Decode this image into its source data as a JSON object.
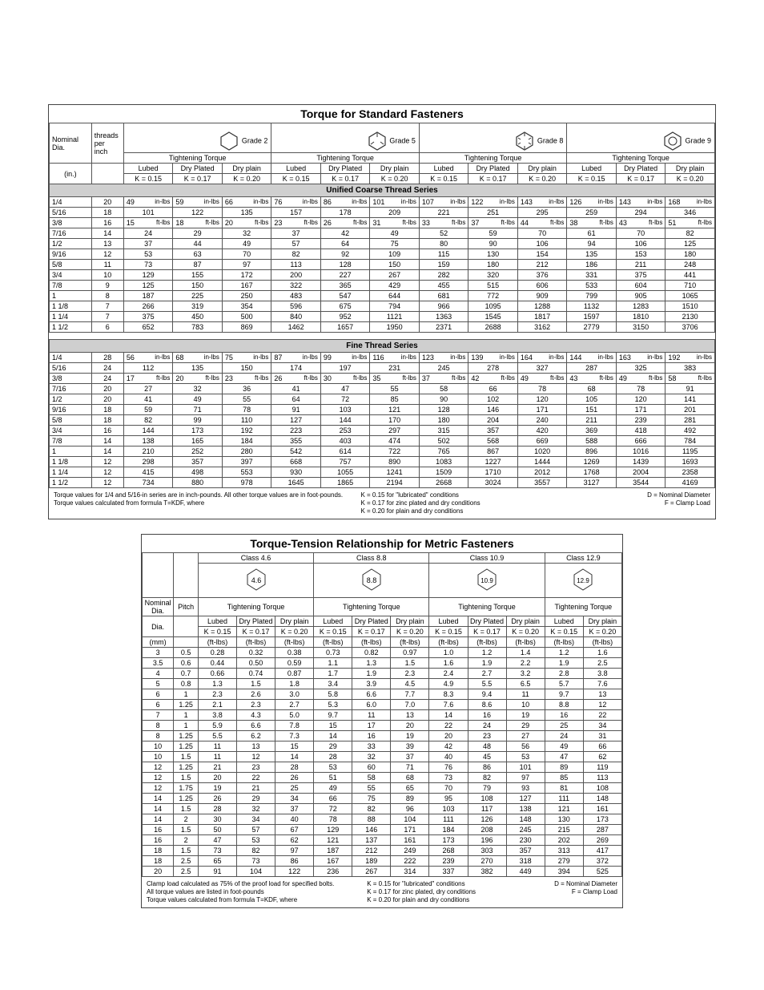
{
  "t1": {
    "title": "Torque for Standard Fasteners",
    "row1_labels": {
      "dia": "Nominal\nDia.",
      "tpi": "threads\nper\ninch",
      "dia_unit": "(in.)"
    },
    "grades": [
      "Grade 2",
      "Grade 5",
      "Grade 8",
      "Grade 9"
    ],
    "tt_label": "Tightening Torque",
    "conditions": [
      "Lubed",
      "Dry Plated",
      "Dry plain"
    ],
    "k_values": [
      "K = 0.15",
      "K = 0.17",
      "K = 0.20",
      "K = 0.15",
      "K = 0.17",
      "K = 0.20",
      "K = 0.15",
      "K = 0.17",
      "K = 0.20",
      "K = 0.15",
      "K = 0.17",
      "K = 0.20"
    ],
    "coarse_title": "Unified Coarse Thread Series",
    "fine_title": "Fine Thread Series",
    "coarse": [
      {
        "d": "1/4",
        "t": "20",
        "u": "in-lbs",
        "v": [
          "49",
          "59",
          "66",
          "76",
          "86",
          "101",
          "107",
          "122",
          "143",
          "126",
          "143",
          "168"
        ]
      },
      {
        "d": "5/16",
        "t": "18",
        "u": "",
        "v": [
          "101",
          "122",
          "135",
          "157",
          "178",
          "209",
          "221",
          "251",
          "295",
          "259",
          "294",
          "346"
        ]
      },
      {
        "d": "3/8",
        "t": "16",
        "u": "ft-lbs",
        "v": [
          "15",
          "18",
          "20",
          "23",
          "26",
          "31",
          "33",
          "37",
          "44",
          "38",
          "43",
          "51"
        ]
      },
      {
        "d": "7/16",
        "t": "14",
        "u": "",
        "v": [
          "24",
          "29",
          "32",
          "37",
          "42",
          "49",
          "52",
          "59",
          "70",
          "61",
          "70",
          "82"
        ]
      },
      {
        "d": "1/2",
        "t": "13",
        "u": "",
        "v": [
          "37",
          "44",
          "49",
          "57",
          "64",
          "75",
          "80",
          "90",
          "106",
          "94",
          "106",
          "125"
        ]
      },
      {
        "d": "9/16",
        "t": "12",
        "u": "",
        "v": [
          "53",
          "63",
          "70",
          "82",
          "92",
          "109",
          "115",
          "130",
          "154",
          "135",
          "153",
          "180"
        ]
      },
      {
        "d": "5/8",
        "t": "11",
        "u": "",
        "v": [
          "73",
          "87",
          "97",
          "113",
          "128",
          "150",
          "159",
          "180",
          "212",
          "186",
          "211",
          "248"
        ]
      },
      {
        "d": "3/4",
        "t": "10",
        "u": "",
        "v": [
          "129",
          "155",
          "172",
          "200",
          "227",
          "267",
          "282",
          "320",
          "376",
          "331",
          "375",
          "441"
        ]
      },
      {
        "d": "7/8",
        "t": "9",
        "u": "",
        "v": [
          "125",
          "150",
          "167",
          "322",
          "365",
          "429",
          "455",
          "515",
          "606",
          "533",
          "604",
          "710"
        ]
      },
      {
        "d": "1",
        "t": "8",
        "u": "",
        "v": [
          "187",
          "225",
          "250",
          "483",
          "547",
          "644",
          "681",
          "772",
          "909",
          "799",
          "905",
          "1065"
        ]
      },
      {
        "d": "1 1/8",
        "t": "7",
        "u": "",
        "v": [
          "266",
          "319",
          "354",
          "596",
          "675",
          "794",
          "966",
          "1095",
          "1288",
          "1132",
          "1283",
          "1510"
        ]
      },
      {
        "d": "1 1/4",
        "t": "7",
        "u": "",
        "v": [
          "375",
          "450",
          "500",
          "840",
          "952",
          "1121",
          "1363",
          "1545",
          "1817",
          "1597",
          "1810",
          "2130"
        ]
      },
      {
        "d": "1 1/2",
        "t": "6",
        "u": "",
        "v": [
          "652",
          "783",
          "869",
          "1462",
          "1657",
          "1950",
          "2371",
          "2688",
          "3162",
          "2779",
          "3150",
          "3706"
        ]
      }
    ],
    "fine": [
      {
        "d": "1/4",
        "t": "28",
        "u": "in-lbs",
        "v": [
          "56",
          "68",
          "75",
          "87",
          "99",
          "116",
          "123",
          "139",
          "164",
          "144",
          "163",
          "192"
        ]
      },
      {
        "d": "5/16",
        "t": "24",
        "u": "",
        "v": [
          "112",
          "135",
          "150",
          "174",
          "197",
          "231",
          "245",
          "278",
          "327",
          "287",
          "325",
          "383"
        ]
      },
      {
        "d": "3/8",
        "t": "24",
        "u": "ft-lbs",
        "v": [
          "17",
          "20",
          "23",
          "26",
          "30",
          "35",
          "37",
          "42",
          "49",
          "43",
          "49",
          "58"
        ]
      },
      {
        "d": "7/16",
        "t": "20",
        "u": "",
        "v": [
          "27",
          "32",
          "36",
          "41",
          "47",
          "55",
          "58",
          "66",
          "78",
          "68",
          "78",
          "91"
        ]
      },
      {
        "d": "1/2",
        "t": "20",
        "u": "",
        "v": [
          "41",
          "49",
          "55",
          "64",
          "72",
          "85",
          "90",
          "102",
          "120",
          "105",
          "120",
          "141"
        ]
      },
      {
        "d": "9/16",
        "t": "18",
        "u": "",
        "v": [
          "59",
          "71",
          "78",
          "91",
          "103",
          "121",
          "128",
          "146",
          "171",
          "151",
          "171",
          "201"
        ]
      },
      {
        "d": "5/8",
        "t": "18",
        "u": "",
        "v": [
          "82",
          "99",
          "110",
          "127",
          "144",
          "170",
          "180",
          "204",
          "240",
          "211",
          "239",
          "281"
        ]
      },
      {
        "d": "3/4",
        "t": "16",
        "u": "",
        "v": [
          "144",
          "173",
          "192",
          "223",
          "253",
          "297",
          "315",
          "357",
          "420",
          "369",
          "418",
          "492"
        ]
      },
      {
        "d": "7/8",
        "t": "14",
        "u": "",
        "v": [
          "138",
          "165",
          "184",
          "355",
          "403",
          "474",
          "502",
          "568",
          "669",
          "588",
          "666",
          "784"
        ]
      },
      {
        "d": "1",
        "t": "14",
        "u": "",
        "v": [
          "210",
          "252",
          "280",
          "542",
          "614",
          "722",
          "765",
          "867",
          "1020",
          "896",
          "1016",
          "1195"
        ]
      },
      {
        "d": "1 1/8",
        "t": "12",
        "u": "",
        "v": [
          "298",
          "357",
          "397",
          "668",
          "757",
          "890",
          "1083",
          "1227",
          "1444",
          "1269",
          "1439",
          "1693"
        ]
      },
      {
        "d": "1 1/4",
        "t": "12",
        "u": "",
        "v": [
          "415",
          "498",
          "553",
          "930",
          "1055",
          "1241",
          "1509",
          "1710",
          "2012",
          "1768",
          "2004",
          "2358"
        ]
      },
      {
        "d": "1 1/2",
        "t": "12",
        "u": "",
        "v": [
          "734",
          "880",
          "978",
          "1645",
          "1865",
          "2194",
          "2668",
          "3024",
          "3557",
          "3127",
          "3544",
          "4169"
        ]
      }
    ],
    "foot": {
      "a1": "Torque values for 1/4 and 5/16-in series are in inch-pounds.  All other torque values are in foot-pounds.",
      "a2": "Torque values calculated from formula T=KDF, where",
      "b1": "K = 0.15 for \"lubricated\" conditions",
      "b2": "K = 0.17 for zinc plated and dry conditions",
      "b3": "K = 0.20 for plain and dry conditions",
      "c1": "D = Nominal Diameter",
      "c2": "F = Clamp Load"
    }
  },
  "t2": {
    "title": "Torque-Tension Relationship for Metric Fasteners",
    "row1_labels": {
      "dia": "Nominal\nDia.",
      "pitch": "Pitch",
      "dia_unit": "(mm)"
    },
    "classes": [
      "Class 4.6",
      "Class 8.8",
      "Class 10.9",
      "Class 12.9"
    ],
    "class_icons": [
      "4.6",
      "8.8",
      "10.9",
      "12.9"
    ],
    "tt_label": "Tightening Torque",
    "conditions_full": [
      "Lubed",
      "Dry Plated",
      "Dry plain"
    ],
    "conditions_short": [
      "Lubed",
      "Dry plain"
    ],
    "k_full": [
      "K = 0.15",
      "K = 0.17",
      "K = 0.20"
    ],
    "k_short": [
      "K = 0.15",
      "K = 0.20"
    ],
    "unit": "(ft-lbs)",
    "rows": [
      {
        "d": "3",
        "p": "0.5",
        "v": [
          "0.28",
          "0.32",
          "0.38",
          "0.73",
          "0.82",
          "0.97",
          "1.0",
          "1.2",
          "1.4",
          "1.2",
          "1.6"
        ]
      },
      {
        "d": "3.5",
        "p": "0.6",
        "v": [
          "0.44",
          "0.50",
          "0.59",
          "1.1",
          "1.3",
          "1.5",
          "1.6",
          "1.9",
          "2.2",
          "1.9",
          "2.5"
        ]
      },
      {
        "d": "4",
        "p": "0.7",
        "v": [
          "0.66",
          "0.74",
          "0.87",
          "1.7",
          "1.9",
          "2.3",
          "2.4",
          "2.7",
          "3.2",
          "2.8",
          "3.8"
        ]
      },
      {
        "d": "5",
        "p": "0.8",
        "v": [
          "1.3",
          "1.5",
          "1.8",
          "3.4",
          "3.9",
          "4.5",
          "4.9",
          "5.5",
          "6.5",
          "5.7",
          "7.6"
        ]
      },
      {
        "d": "6",
        "p": "1",
        "v": [
          "2.3",
          "2.6",
          "3.0",
          "5.8",
          "6.6",
          "7.7",
          "8.3",
          "9.4",
          "11",
          "9.7",
          "13"
        ]
      },
      {
        "d": "6",
        "p": "1.25",
        "v": [
          "2.1",
          "2.3",
          "2.7",
          "5.3",
          "6.0",
          "7.0",
          "7.6",
          "8.6",
          "10",
          "8.8",
          "12"
        ]
      },
      {
        "d": "7",
        "p": "1",
        "v": [
          "3.8",
          "4.3",
          "5.0",
          "9.7",
          "11",
          "13",
          "14",
          "16",
          "19",
          "16",
          "22"
        ]
      },
      {
        "d": "8",
        "p": "1",
        "v": [
          "5.9",
          "6.6",
          "7.8",
          "15",
          "17",
          "20",
          "22",
          "24",
          "29",
          "25",
          "34"
        ]
      },
      {
        "d": "8",
        "p": "1.25",
        "v": [
          "5.5",
          "6.2",
          "7.3",
          "14",
          "16",
          "19",
          "20",
          "23",
          "27",
          "24",
          "31"
        ]
      },
      {
        "d": "10",
        "p": "1.25",
        "v": [
          "11",
          "13",
          "15",
          "29",
          "33",
          "39",
          "42",
          "48",
          "56",
          "49",
          "66"
        ]
      },
      {
        "d": "10",
        "p": "1.5",
        "v": [
          "11",
          "12",
          "14",
          "28",
          "32",
          "37",
          "40",
          "45",
          "53",
          "47",
          "62"
        ]
      },
      {
        "d": "12",
        "p": "1.25",
        "v": [
          "21",
          "23",
          "28",
          "53",
          "60",
          "71",
          "76",
          "86",
          "101",
          "89",
          "119"
        ]
      },
      {
        "d": "12",
        "p": "1.5",
        "v": [
          "20",
          "22",
          "26",
          "51",
          "58",
          "68",
          "73",
          "82",
          "97",
          "85",
          "113"
        ]
      },
      {
        "d": "12",
        "p": "1.75",
        "v": [
          "19",
          "21",
          "25",
          "49",
          "55",
          "65",
          "70",
          "79",
          "93",
          "81",
          "108"
        ]
      },
      {
        "d": "14",
        "p": "1.25",
        "v": [
          "26",
          "29",
          "34",
          "66",
          "75",
          "89",
          "95",
          "108",
          "127",
          "111",
          "148"
        ]
      },
      {
        "d": "14",
        "p": "1.5",
        "v": [
          "28",
          "32",
          "37",
          "72",
          "82",
          "96",
          "103",
          "117",
          "138",
          "121",
          "161"
        ]
      },
      {
        "d": "14",
        "p": "2",
        "v": [
          "30",
          "34",
          "40",
          "78",
          "88",
          "104",
          "111",
          "126",
          "148",
          "130",
          "173"
        ]
      },
      {
        "d": "16",
        "p": "1.5",
        "v": [
          "50",
          "57",
          "67",
          "129",
          "146",
          "171",
          "184",
          "208",
          "245",
          "215",
          "287"
        ]
      },
      {
        "d": "16",
        "p": "2",
        "v": [
          "47",
          "53",
          "62",
          "121",
          "137",
          "161",
          "173",
          "196",
          "230",
          "202",
          "269"
        ]
      },
      {
        "d": "18",
        "p": "1.5",
        "v": [
          "73",
          "82",
          "97",
          "187",
          "212",
          "249",
          "268",
          "303",
          "357",
          "313",
          "417"
        ]
      },
      {
        "d": "18",
        "p": "2.5",
        "v": [
          "65",
          "73",
          "86",
          "167",
          "189",
          "222",
          "239",
          "270",
          "318",
          "279",
          "372"
        ]
      },
      {
        "d": "20",
        "p": "2.5",
        "v": [
          "91",
          "104",
          "122",
          "236",
          "267",
          "314",
          "337",
          "382",
          "449",
          "394",
          "525"
        ]
      }
    ],
    "foot": {
      "a1": "Clamp load calculated as 75% of the proof load for specified bolts.",
      "a2": "All torque values are listed in foot-pounds",
      "a3": "Torque values calculated from formula T=KDF, where",
      "b1": "K = 0.15 for \"lubricated\" conditions",
      "b2": "K = 0.17 for zinc plated, dry conditions",
      "b3": "K = 0.20 for plain and dry conditions",
      "c1": "D = Nominal Diameter",
      "c2": "F = Clamp Load"
    }
  },
  "colors": {
    "title_bg": "#ffffff",
    "series_bg": "#cfcfcf",
    "border": "#555555"
  }
}
